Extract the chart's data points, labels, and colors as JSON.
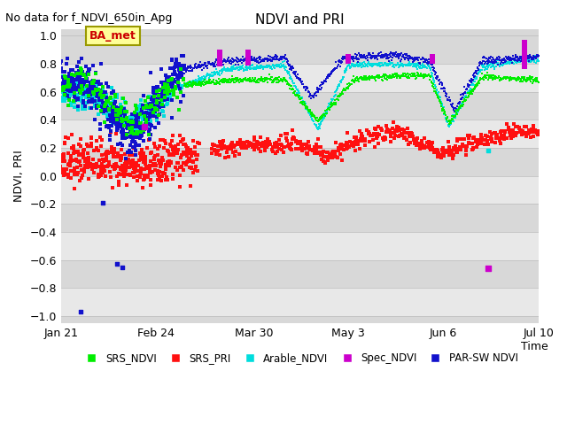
{
  "title": "NDVI and PRI",
  "subtitle": "No data for f_NDVI_650in_Apg",
  "ylabel": "NDVI, PRI",
  "xlabel": "Time",
  "annotation": "BA_met",
  "ylim": [
    -1.05,
    1.05
  ],
  "yticks": [
    -1.0,
    -0.8,
    -0.6,
    -0.4,
    -0.2,
    0.0,
    0.2,
    0.4,
    0.6,
    0.8,
    1.0
  ],
  "xtick_labels": [
    "Jan 21",
    "Feb 24",
    "Mar 30",
    "May 3",
    "Jun 6",
    "Jul 10"
  ],
  "srs_ndvi_color": "#00ee00",
  "srs_pri_color": "#ff1010",
  "arable_ndvi_color": "#00dddd",
  "spec_ndvi_color": "#cc00cc",
  "parsw_ndvi_color": "#1111cc",
  "bg_color": "#d8d8d8",
  "fig_color": "#ffffff",
  "grid_color": "#bbbbbb"
}
